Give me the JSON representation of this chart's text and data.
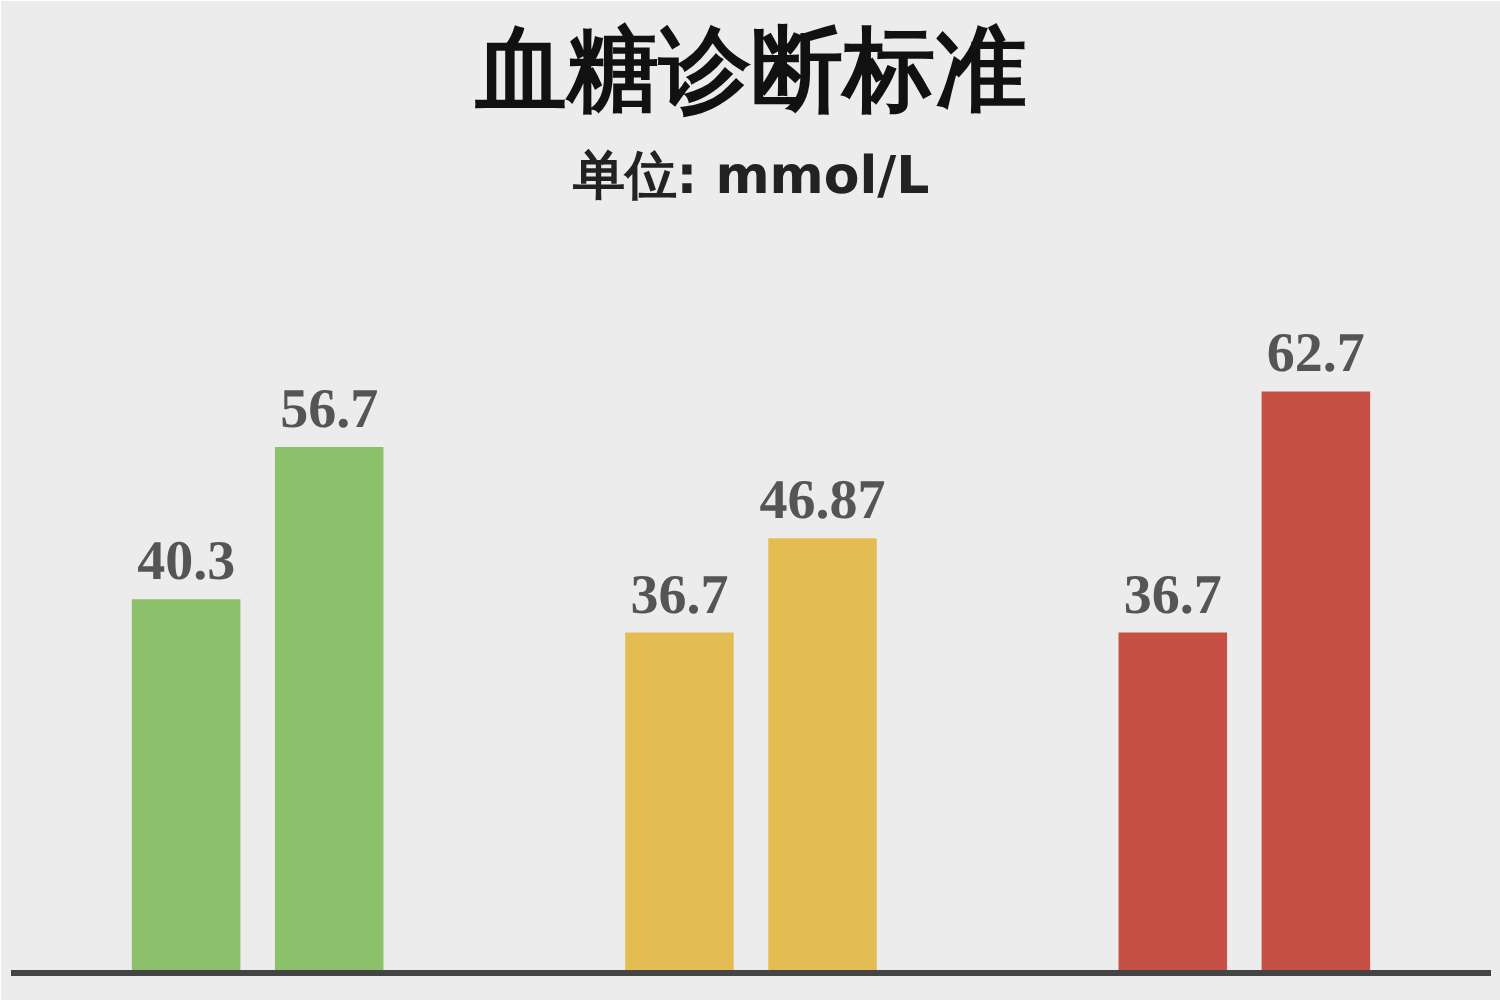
{
  "chart_data": {
    "type": "bar",
    "title": "血糖诊断标准",
    "subtitle": "单位: mmol/L",
    "categories": [
      null,
      null,
      null
    ],
    "data_labels": true,
    "series": [
      {
        "colors": [
          "#8cc06a",
          "#e4bd52",
          "#c65044"
        ],
        "values": [
          40.3,
          36.7,
          36.7
        ]
      },
      {
        "colors": [
          "#8cc06a",
          "#e4bd52",
          "#c65044"
        ],
        "values": [
          56.7,
          46.87,
          62.7
        ]
      }
    ]
  }
}
